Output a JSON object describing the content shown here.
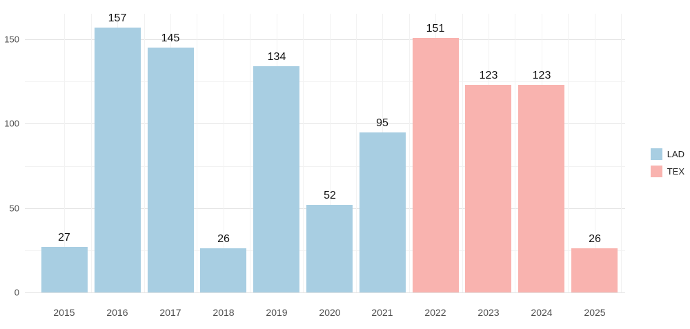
{
  "chart_data": {
    "type": "bar",
    "title": "",
    "xlabel": "",
    "ylabel": "",
    "categories": [
      "2015",
      "2016",
      "2017",
      "2018",
      "2019",
      "2020",
      "2021",
      "2022",
      "2023",
      "2024",
      "2025"
    ],
    "values": [
      27,
      157,
      145,
      26,
      134,
      52,
      95,
      151,
      123,
      123,
      26
    ],
    "groups": [
      "LAD",
      "LAD",
      "LAD",
      "LAD",
      "LAD",
      "LAD",
      "LAD",
      "TEX",
      "TEX",
      "TEX",
      "TEX"
    ],
    "legend": [
      {
        "label": "LAD",
        "color": "#a8cee2"
      },
      {
        "label": "TEX",
        "color": "#f9b3af"
      }
    ],
    "legend_position": "right",
    "ylim": [
      0,
      160
    ],
    "yticks": [
      0,
      50,
      100,
      150
    ],
    "yticks_minor": [
      25,
      75,
      125
    ],
    "grid": true,
    "colors": {
      "grid_major": "#e3e3e3",
      "grid_minor": "#f2f2f2",
      "background": "#ffffff"
    }
  }
}
